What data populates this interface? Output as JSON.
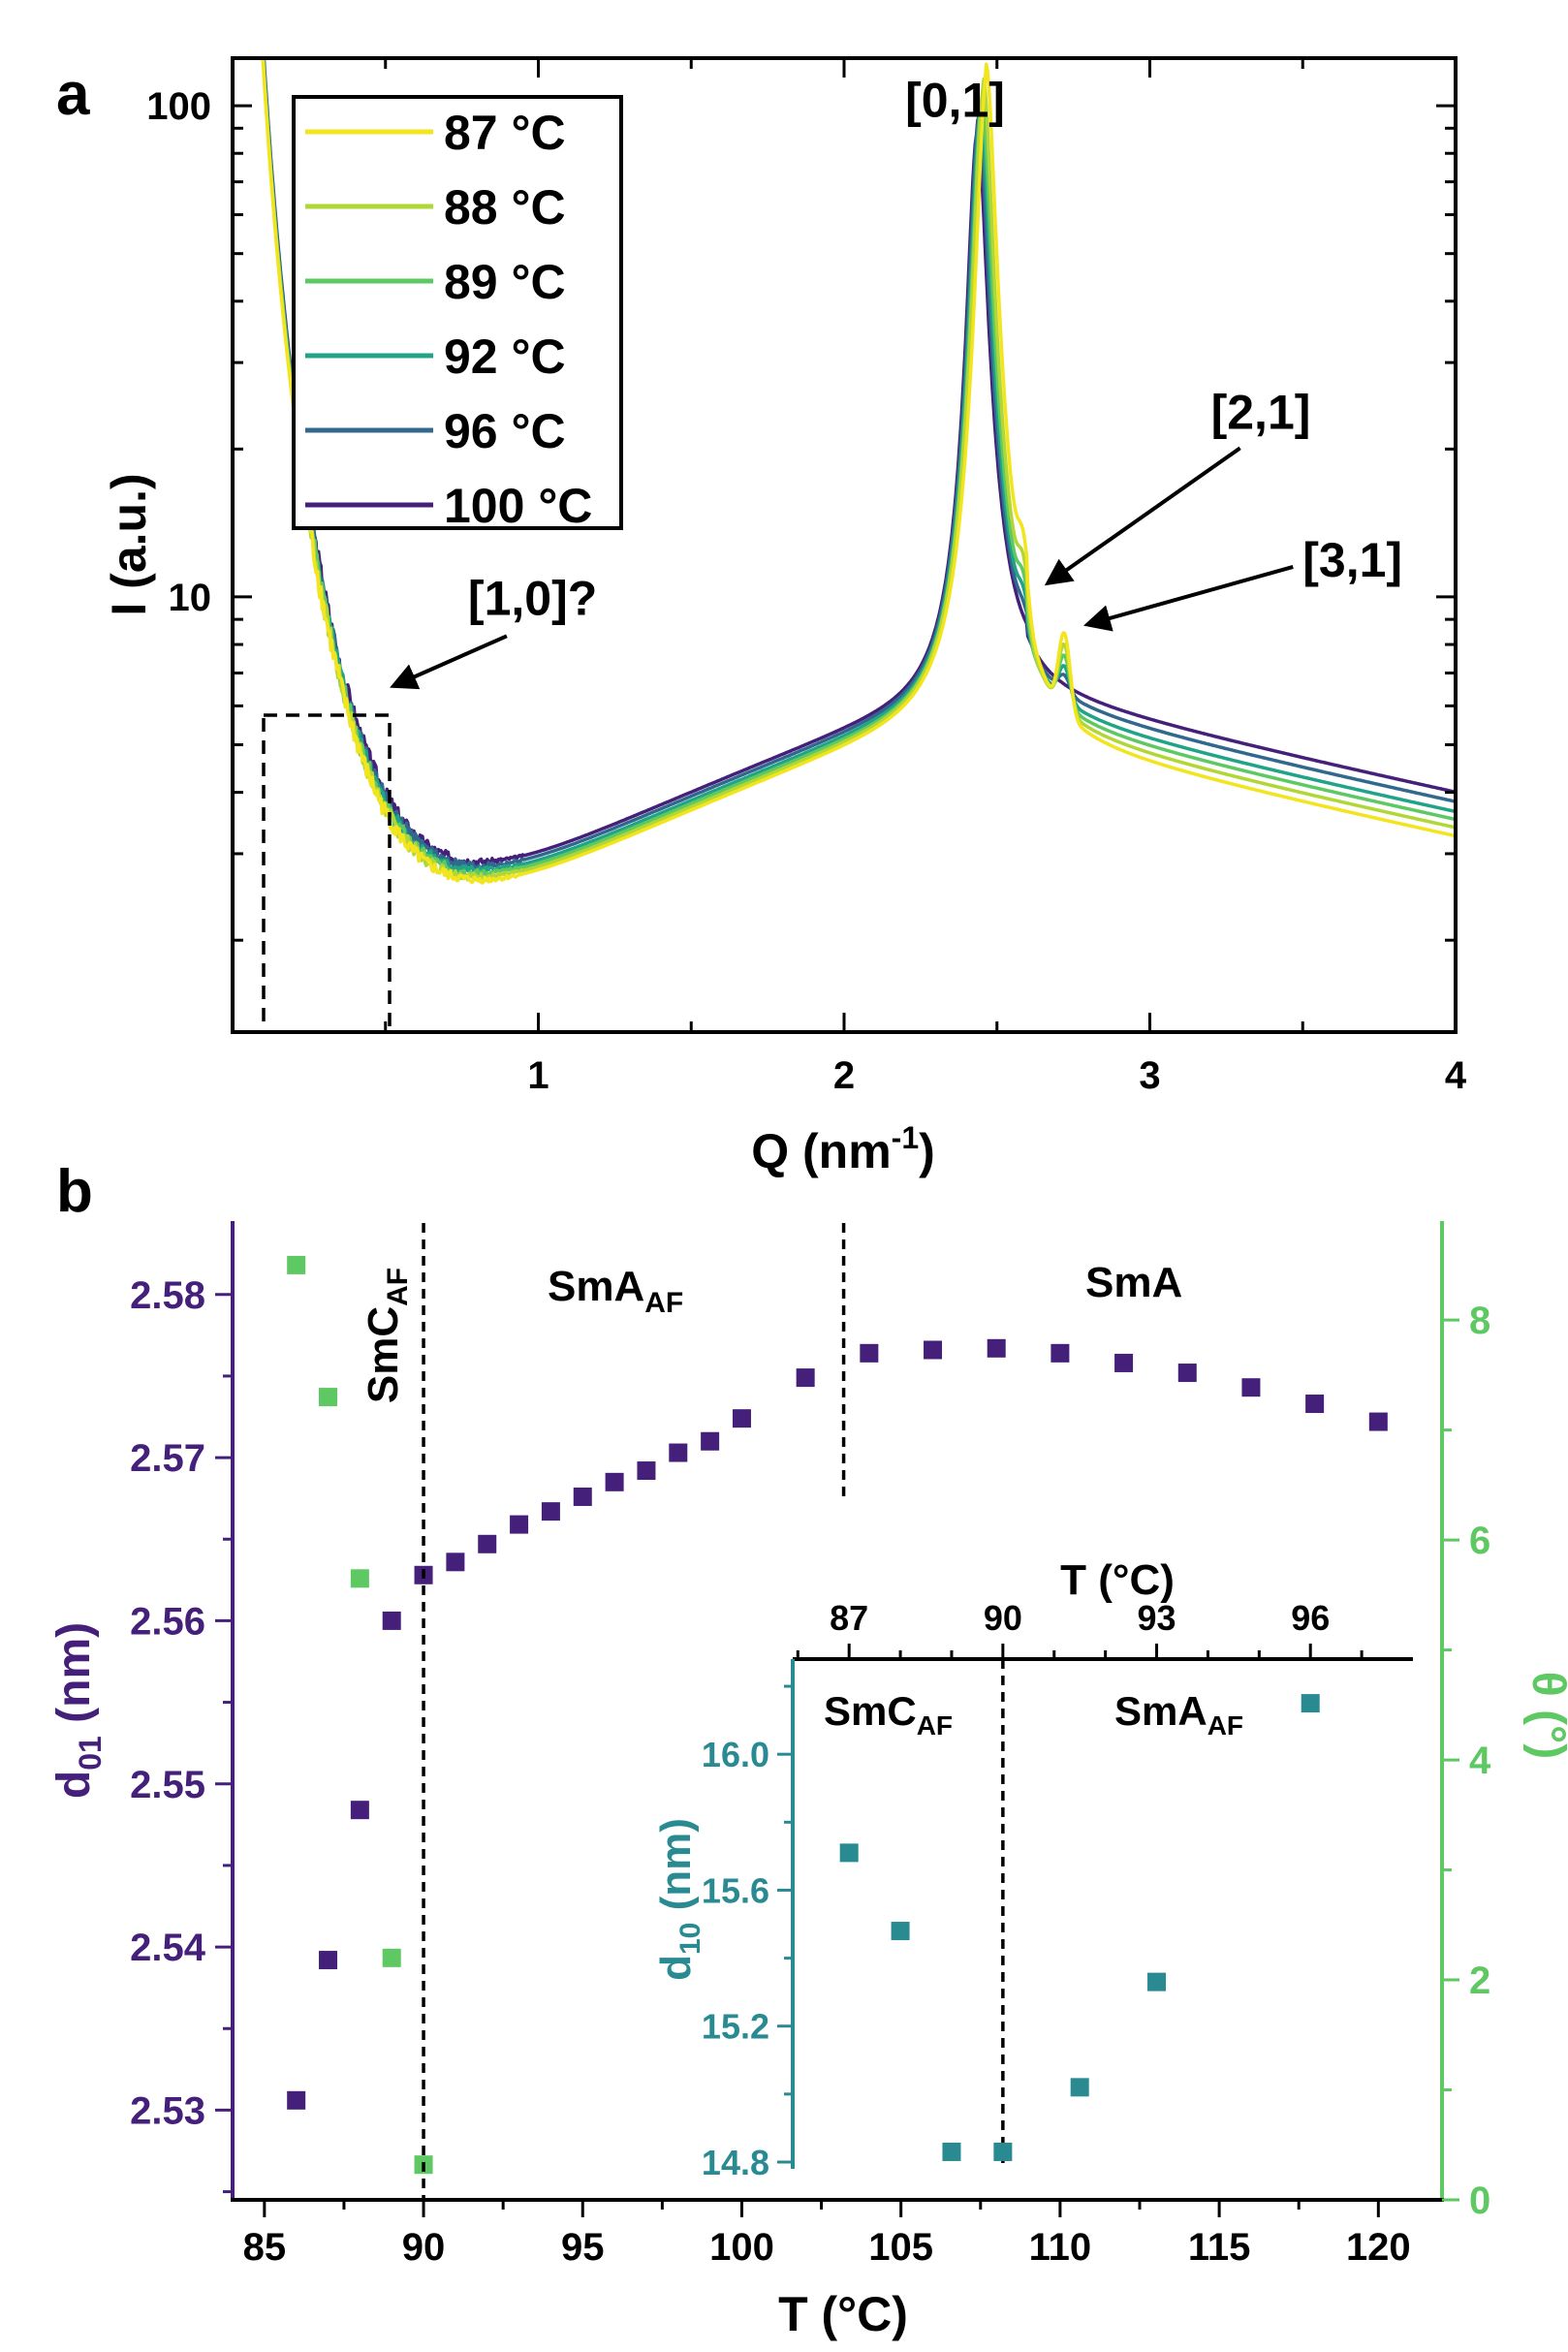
{
  "chart_data": [
    {
      "type": "line",
      "panel_label": "a",
      "xlabel": "Q (nm",
      "xlabel_sup": "-1",
      "xlabel_end": ")",
      "ylabel": "I (a.u.)",
      "xscale": "linear",
      "yscale": "log",
      "xlim": [
        0.0,
        4.0
      ],
      "ylim": [
        1.3,
        125
      ],
      "xticks": [
        1,
        2,
        3,
        4
      ],
      "yticks": [
        10,
        100
      ],
      "legend_position": "top-left",
      "series": [
        {
          "name": "87 °C",
          "color": "#f2e51e",
          "peak_q": 2.465,
          "peak_i": 115,
          "base_scale": 0.955,
          "h21": 1.0,
          "h31": 1.0
        },
        {
          "name": "88 °C",
          "color": "#b0d735",
          "peak_q": 2.455,
          "peak_i": 108,
          "base_scale": 0.97,
          "h21": 0.8,
          "h31": 0.8
        },
        {
          "name": "89 °C",
          "color": "#5ec862",
          "peak_q": 2.45,
          "peak_i": 100,
          "base_scale": 0.985,
          "h21": 0.6,
          "h31": 0.6
        },
        {
          "name": "92 °C",
          "color": "#20a386",
          "peak_q": 2.445,
          "peak_i": 96,
          "base_scale": 1.0,
          "h21": 0.4,
          "h31": 0.4
        },
        {
          "name": "96 °C",
          "color": "#30688e",
          "peak_q": 2.44,
          "peak_i": 92,
          "base_scale": 1.02,
          "h21": 0.2,
          "h31": 0.2
        },
        {
          "name": "100 °C",
          "color": "#45207a",
          "peak_q": 2.435,
          "peak_i": 88,
          "base_scale": 1.04,
          "h21": 0.0,
          "h31": 0.0
        }
      ],
      "annotations": [
        {
          "text": "[0,1]",
          "q": 2.2,
          "i": 95
        },
        {
          "text": "[2,1]",
          "q": 3.2,
          "i": 22,
          "arrow_to": [
            2.67,
            10.7
          ]
        },
        {
          "text": "[3,1]",
          "q": 3.5,
          "i": 11,
          "arrow_to": [
            2.8,
            8.8
          ]
        },
        {
          "text": "[1,0]?",
          "q": 0.77,
          "i": 9.2,
          "arrow_to": [
            0.53,
            6.6
          ]
        }
      ]
    },
    {
      "type": "scatter",
      "panel_label": "b",
      "xlabel": "T (°C)",
      "ylabel_left_main": "d",
      "ylabel_left_sub": "01",
      "ylabel_left_end": " (nm)",
      "ylabel_right": "θ (°)",
      "xlim": [
        84,
        122
      ],
      "ylim_left": [
        2.5245,
        2.5845
      ],
      "ylim_right": [
        0,
        8.9
      ],
      "xticks": [
        85,
        90,
        95,
        100,
        105,
        110,
        115,
        120
      ],
      "yticks_left": [
        2.53,
        2.54,
        2.55,
        2.56,
        2.57,
        2.58
      ],
      "yticks_right": [
        0,
        2,
        4,
        6,
        8
      ],
      "left_color": "#45207a",
      "right_color": "#5ec862",
      "series": [
        {
          "name": "d01",
          "axis": "left",
          "color": "#45207a",
          "x": [
            86,
            87,
            88,
            89,
            90,
            91,
            92,
            93,
            94,
            95,
            96,
            97,
            98,
            99,
            100,
            102,
            104,
            106,
            108,
            110,
            112,
            114,
            116,
            118,
            120
          ],
          "y": [
            2.5306,
            2.5392,
            2.5484,
            2.56,
            2.5628,
            2.5636,
            2.5647,
            2.5659,
            2.5667,
            2.5676,
            2.5685,
            2.5692,
            2.5703,
            2.571,
            2.5724,
            2.5749,
            2.5764,
            2.5766,
            2.5767,
            2.5764,
            2.5758,
            2.5752,
            2.5743,
            2.5733,
            2.5722
          ]
        },
        {
          "name": "θ",
          "axis": "right",
          "color": "#5ec862",
          "x": [
            86,
            87,
            88,
            89,
            90
          ],
          "y": [
            8.5,
            7.3,
            5.65,
            2.2,
            0.32
          ]
        }
      ],
      "phase_boundaries": [
        90,
        103.2
      ],
      "phase_labels": {
        "smc_main": "SmC",
        "smc_sub": "AF",
        "sma_af_main": "SmA",
        "sma_af_sub": "AF",
        "sma": "SmA"
      },
      "inset": {
        "type": "scatter",
        "xlabel": "T (°C)",
        "ylabel_main": "d",
        "ylabel_sub": "10",
        "ylabel_end": " (nm)",
        "xlim": [
          85.9,
          98.0
        ],
        "ylim": [
          14.78,
          16.28
        ],
        "xticks": [
          87,
          90,
          93,
          96
        ],
        "yticks": [
          "14.8",
          "15.2",
          "15.6",
          "16.0"
        ],
        "color": "#2a8a92",
        "x": [
          87,
          88,
          89,
          90,
          91.5,
          93,
          96
        ],
        "y": [
          15.71,
          15.48,
          14.83,
          14.83,
          15.02,
          15.33,
          16.15
        ],
        "phase_boundary": 90,
        "phase_labels": {
          "left_main": "SmC",
          "left_sub": "AF",
          "right_main": "SmA",
          "right_sub": "AF"
        }
      }
    }
  ]
}
